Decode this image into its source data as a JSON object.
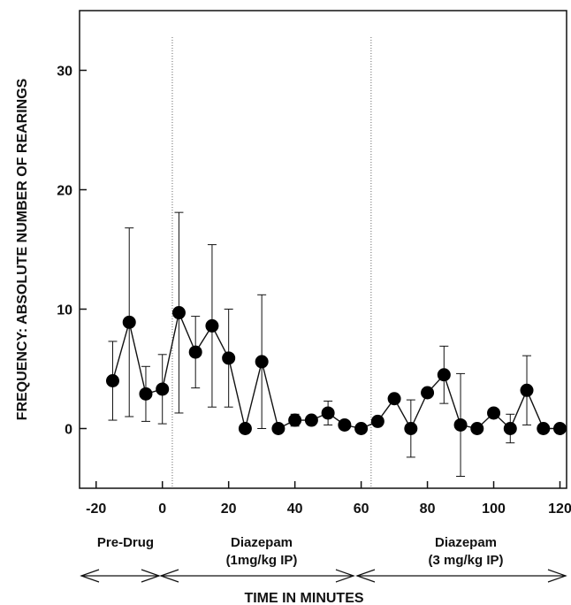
{
  "chart_data": {
    "type": "line",
    "ylabel": "FREQUENCY: ABSOLUTE NUMBER OF REARINGS",
    "xlabel": "TIME IN MINUTES",
    "xlim": [
      -25,
      122
    ],
    "ylim": [
      -5,
      35
    ],
    "x_ticks": [
      "-20",
      "0",
      "20",
      "40",
      "60",
      "80",
      "100",
      "120"
    ],
    "y_ticks": [
      "0",
      "10",
      "20",
      "30"
    ],
    "phase_boundaries": [
      3,
      63
    ],
    "phases": [
      {
        "label": "Pre-Drug",
        "label2": ""
      },
      {
        "label": "Diazepam",
        "label2": "(1mg/kg IP)"
      },
      {
        "label": "Diazepam",
        "label2": "(3 mg/kg IP)"
      }
    ],
    "series": [
      {
        "x": [
          -15,
          -10,
          -5,
          0,
          5,
          10,
          15,
          20,
          25,
          30,
          35,
          40,
          45,
          50,
          55,
          60,
          65,
          70,
          75,
          80,
          85,
          90,
          95,
          100,
          105,
          110,
          115,
          120
        ],
        "values": [
          4.0,
          8.9,
          2.9,
          3.3,
          9.7,
          6.4,
          8.6,
          5.9,
          0.0,
          5.6,
          0.0,
          0.7,
          0.7,
          1.3,
          0.3,
          0.0,
          0.6,
          2.5,
          0.0,
          3.0,
          4.5,
          0.3,
          0.0,
          1.3,
          0.0,
          3.2,
          0.0,
          0.0
        ],
        "err": [
          3.3,
          7.9,
          2.3,
          2.9,
          8.4,
          3.0,
          6.8,
          4.1,
          0.0,
          5.6,
          0.0,
          0.5,
          0.3,
          1.0,
          0.2,
          0.0,
          0.2,
          0.4,
          2.4,
          0.0,
          2.4,
          4.3,
          0.0,
          0.3,
          1.2,
          2.9,
          0.0,
          0.0
        ]
      }
    ]
  }
}
